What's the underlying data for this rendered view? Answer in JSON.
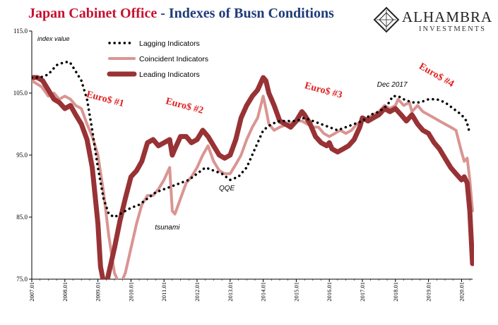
{
  "header": {
    "title_brand": "Japan Cabinet Office",
    "title_rest": " - Indexes of Busn Conditions",
    "logo_name": "ALHAMBRA",
    "logo_sub": "INVESTMENTS"
  },
  "colors": {
    "lagging": "#000000",
    "coincident": "#d99592",
    "leading": "#983235",
    "annotation_red": "#e02020",
    "title_red": "#c8102e",
    "title_blue": "#1f3b7a"
  },
  "chart_data": {
    "type": "line",
    "ylabel": "index value",
    "ylim": [
      75,
      115
    ],
    "y_ticks": [
      "75.0",
      "85.0",
      "95.0",
      "105.0",
      "115.0"
    ],
    "xlim": [
      2007.0,
      2020.333
    ],
    "x_ticks": [
      "2007.01",
      "2008.01",
      "2009.01",
      "2010.01",
      "2011.01",
      "2012.01",
      "2013.01",
      "2014.01",
      "2015.01",
      "2016.01",
      "2017.01",
      "2018.01",
      "2019.01",
      "2020.01"
    ],
    "legend_position": "top-left",
    "series": [
      {
        "name": "Lagging Indicators",
        "style": "dotted",
        "points": [
          [
            2007.0,
            107.5
          ],
          [
            2007.25,
            107.5
          ],
          [
            2007.5,
            108.0
          ],
          [
            2007.75,
            109.5
          ],
          [
            2008.0,
            110.0
          ],
          [
            2008.15,
            110.0
          ],
          [
            2008.33,
            108.5
          ],
          [
            2008.5,
            107.0
          ],
          [
            2008.67,
            104.0
          ],
          [
            2008.83,
            99.0
          ],
          [
            2009.0,
            93.0
          ],
          [
            2009.17,
            88.0
          ],
          [
            2009.33,
            85.5
          ],
          [
            2009.5,
            85.0
          ],
          [
            2009.67,
            85.5
          ],
          [
            2009.83,
            86.0
          ],
          [
            2010.0,
            86.5
          ],
          [
            2010.25,
            87.0
          ],
          [
            2010.5,
            88.0
          ],
          [
            2010.75,
            89.0
          ],
          [
            2011.0,
            89.5
          ],
          [
            2011.25,
            90.0
          ],
          [
            2011.5,
            90.5
          ],
          [
            2011.75,
            91.0
          ],
          [
            2012.0,
            92.0
          ],
          [
            2012.25,
            93.0
          ],
          [
            2012.5,
            92.5
          ],
          [
            2012.75,
            92.0
          ],
          [
            2013.0,
            91.0
          ],
          [
            2013.25,
            91.5
          ],
          [
            2013.5,
            93.0
          ],
          [
            2013.75,
            96.0
          ],
          [
            2014.0,
            99.0
          ],
          [
            2014.25,
            100.0
          ],
          [
            2014.5,
            100.5
          ],
          [
            2014.75,
            100.5
          ],
          [
            2015.0,
            100.5
          ],
          [
            2015.25,
            101.0
          ],
          [
            2015.5,
            100.5
          ],
          [
            2015.75,
            100.0
          ],
          [
            2016.0,
            99.5
          ],
          [
            2016.25,
            99.0
          ],
          [
            2016.5,
            99.5
          ],
          [
            2016.75,
            100.0
          ],
          [
            2017.0,
            100.5
          ],
          [
            2017.25,
            101.5
          ],
          [
            2017.5,
            102.0
          ],
          [
            2017.75,
            103.0
          ],
          [
            2017.92,
            104.5
          ],
          [
            2018.08,
            104.5
          ],
          [
            2018.25,
            104.0
          ],
          [
            2018.5,
            103.5
          ],
          [
            2018.75,
            103.5
          ],
          [
            2019.0,
            104.0
          ],
          [
            2019.25,
            104.0
          ],
          [
            2019.5,
            103.5
          ],
          [
            2019.75,
            102.5
          ],
          [
            2020.0,
            101.5
          ],
          [
            2020.15,
            100.5
          ],
          [
            2020.25,
            98.5
          ]
        ]
      },
      {
        "name": "Coincident Indicators",
        "style": "solid-medium",
        "points": [
          [
            2007.0,
            107.0
          ],
          [
            2007.15,
            106.5
          ],
          [
            2007.3,
            106.0
          ],
          [
            2007.5,
            104.5
          ],
          [
            2007.67,
            105.0
          ],
          [
            2007.83,
            104.0
          ],
          [
            2008.0,
            104.5
          ],
          [
            2008.17,
            104.0
          ],
          [
            2008.33,
            103.0
          ],
          [
            2008.5,
            102.5
          ],
          [
            2008.67,
            100.0
          ],
          [
            2008.83,
            98.0
          ],
          [
            2009.0,
            95.0
          ],
          [
            2009.17,
            89.0
          ],
          [
            2009.33,
            82.0
          ],
          [
            2009.5,
            76.0
          ],
          [
            2009.67,
            74.0
          ],
          [
            2009.83,
            76.0
          ],
          [
            2010.0,
            80.0
          ],
          [
            2010.17,
            84.0
          ],
          [
            2010.33,
            87.0
          ],
          [
            2010.5,
            88.5
          ],
          [
            2010.67,
            88.5
          ],
          [
            2010.83,
            89.5
          ],
          [
            2011.0,
            91.0
          ],
          [
            2011.17,
            93.0
          ],
          [
            2011.25,
            86.0
          ],
          [
            2011.33,
            85.5
          ],
          [
            2011.5,
            88.0
          ],
          [
            2011.67,
            90.5
          ],
          [
            2011.83,
            91.5
          ],
          [
            2012.0,
            93.0
          ],
          [
            2012.17,
            95.0
          ],
          [
            2012.33,
            96.5
          ],
          [
            2012.5,
            94.0
          ],
          [
            2012.67,
            92.5
          ],
          [
            2012.83,
            92.0
          ],
          [
            2013.0,
            92.0
          ],
          [
            2013.17,
            93.5
          ],
          [
            2013.33,
            95.0
          ],
          [
            2013.5,
            97.5
          ],
          [
            2013.67,
            99.5
          ],
          [
            2013.83,
            101.0
          ],
          [
            2014.0,
            104.5
          ],
          [
            2014.08,
            102.5
          ],
          [
            2014.17,
            100.0
          ],
          [
            2014.33,
            99.0
          ],
          [
            2014.5,
            99.5
          ],
          [
            2014.75,
            100.0
          ],
          [
            2015.0,
            100.5
          ],
          [
            2015.17,
            100.5
          ],
          [
            2015.33,
            100.0
          ],
          [
            2015.5,
            99.5
          ],
          [
            2015.67,
            99.5
          ],
          [
            2015.83,
            98.5
          ],
          [
            2016.0,
            98.0
          ],
          [
            2016.17,
            98.5
          ],
          [
            2016.33,
            99.0
          ],
          [
            2016.5,
            98.5
          ],
          [
            2016.67,
            99.0
          ],
          [
            2016.83,
            100.0
          ],
          [
            2017.0,
            100.5
          ],
          [
            2017.17,
            101.0
          ],
          [
            2017.33,
            101.5
          ],
          [
            2017.5,
            102.0
          ],
          [
            2017.67,
            103.0
          ],
          [
            2017.83,
            102.5
          ],
          [
            2018.0,
            103.0
          ],
          [
            2018.08,
            104.0
          ],
          [
            2018.25,
            103.0
          ],
          [
            2018.42,
            103.5
          ],
          [
            2018.5,
            102.0
          ],
          [
            2018.67,
            103.0
          ],
          [
            2018.83,
            102.0
          ],
          [
            2019.0,
            101.5
          ],
          [
            2019.17,
            101.0
          ],
          [
            2019.33,
            100.5
          ],
          [
            2019.5,
            100.0
          ],
          [
            2019.67,
            99.5
          ],
          [
            2019.83,
            99.0
          ],
          [
            2020.0,
            95.5
          ],
          [
            2020.08,
            94.0
          ],
          [
            2020.17,
            94.5
          ],
          [
            2020.25,
            91.0
          ],
          [
            2020.33,
            86.0
          ]
        ]
      },
      {
        "name": "Leading Indicators",
        "style": "solid-thick",
        "points": [
          [
            2007.0,
            107.5
          ],
          [
            2007.17,
            107.5
          ],
          [
            2007.33,
            107.0
          ],
          [
            2007.5,
            105.5
          ],
          [
            2007.67,
            104.0
          ],
          [
            2007.83,
            103.5
          ],
          [
            2008.0,
            102.5
          ],
          [
            2008.17,
            103.0
          ],
          [
            2008.33,
            101.5
          ],
          [
            2008.5,
            100.0
          ],
          [
            2008.67,
            97.5
          ],
          [
            2008.83,
            93.0
          ],
          [
            2009.0,
            84.0
          ],
          [
            2009.08,
            77.0
          ],
          [
            2009.17,
            74.5
          ],
          [
            2009.25,
            74.0
          ],
          [
            2009.33,
            76.0
          ],
          [
            2009.5,
            80.0
          ],
          [
            2009.67,
            84.5
          ],
          [
            2009.83,
            88.0
          ],
          [
            2010.0,
            91.5
          ],
          [
            2010.17,
            92.5
          ],
          [
            2010.33,
            94.0
          ],
          [
            2010.5,
            97.0
          ],
          [
            2010.67,
            97.5
          ],
          [
            2010.83,
            96.5
          ],
          [
            2011.0,
            97.0
          ],
          [
            2011.17,
            97.5
          ],
          [
            2011.25,
            95.0
          ],
          [
            2011.33,
            96.0
          ],
          [
            2011.5,
            98.0
          ],
          [
            2011.67,
            98.0
          ],
          [
            2011.83,
            97.0
          ],
          [
            2012.0,
            97.5
          ],
          [
            2012.17,
            99.0
          ],
          [
            2012.33,
            98.0
          ],
          [
            2012.5,
            96.5
          ],
          [
            2012.67,
            95.0
          ],
          [
            2012.83,
            94.5
          ],
          [
            2013.0,
            95.0
          ],
          [
            2013.17,
            97.5
          ],
          [
            2013.33,
            101.0
          ],
          [
            2013.5,
            103.0
          ],
          [
            2013.67,
            104.5
          ],
          [
            2013.83,
            105.5
          ],
          [
            2014.0,
            107.5
          ],
          [
            2014.08,
            107.0
          ],
          [
            2014.17,
            105.0
          ],
          [
            2014.33,
            103.0
          ],
          [
            2014.5,
            100.5
          ],
          [
            2014.67,
            100.0
          ],
          [
            2014.83,
            99.5
          ],
          [
            2015.0,
            100.5
          ],
          [
            2015.17,
            102.0
          ],
          [
            2015.25,
            101.5
          ],
          [
            2015.42,
            100.0
          ],
          [
            2015.58,
            98.0
          ],
          [
            2015.75,
            97.0
          ],
          [
            2015.92,
            96.5
          ],
          [
            2016.0,
            97.0
          ],
          [
            2016.08,
            96.0
          ],
          [
            2016.25,
            95.5
          ],
          [
            2016.42,
            96.0
          ],
          [
            2016.58,
            96.5
          ],
          [
            2016.75,
            97.5
          ],
          [
            2016.92,
            99.5
          ],
          [
            2017.0,
            101.0
          ],
          [
            2017.17,
            100.5
          ],
          [
            2017.33,
            101.0
          ],
          [
            2017.5,
            101.5
          ],
          [
            2017.67,
            102.5
          ],
          [
            2017.83,
            102.0
          ],
          [
            2018.0,
            102.5
          ],
          [
            2018.17,
            101.5
          ],
          [
            2018.33,
            100.5
          ],
          [
            2018.5,
            101.5
          ],
          [
            2018.67,
            100.0
          ],
          [
            2018.83,
            99.0
          ],
          [
            2019.0,
            98.5
          ],
          [
            2019.17,
            97.0
          ],
          [
            2019.33,
            96.0
          ],
          [
            2019.5,
            94.5
          ],
          [
            2019.67,
            93.0
          ],
          [
            2019.83,
            92.0
          ],
          [
            2020.0,
            91.0
          ],
          [
            2020.08,
            91.5
          ],
          [
            2020.17,
            90.5
          ],
          [
            2020.25,
            86.0
          ],
          [
            2020.33,
            77.5
          ]
        ]
      }
    ],
    "annotations": [
      {
        "text": "Euro$ #1",
        "x": 2009.2,
        "y": 103.6,
        "color": "red",
        "rotate": 15
      },
      {
        "text": "Euro$ #2",
        "x": 2011.6,
        "y": 102.5,
        "color": "red",
        "rotate": 15
      },
      {
        "text": "Euro$ #3",
        "x": 2015.8,
        "y": 105.0,
        "color": "red",
        "rotate": 15
      },
      {
        "text": "Euro$ #4",
        "x": 2019.2,
        "y": 107.5,
        "color": "red",
        "rotate": 30
      },
      {
        "text": "Dec 2017",
        "x": 2017.9,
        "y": 106.0,
        "color": "black"
      },
      {
        "text": "QQE",
        "x": 2012.9,
        "y": 89.3,
        "color": "black"
      },
      {
        "text": "tsunami",
        "x": 2011.1,
        "y": 83.0,
        "color": "black"
      }
    ]
  }
}
